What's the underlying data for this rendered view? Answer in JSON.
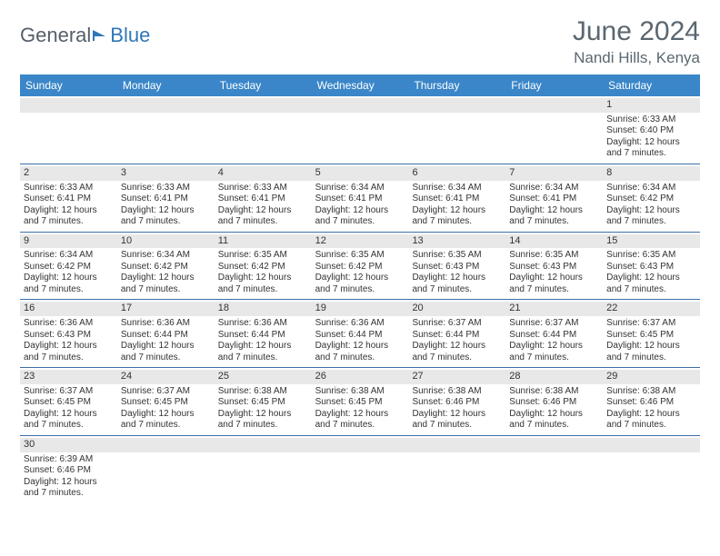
{
  "brand": {
    "part1": "General",
    "part2": "Blue"
  },
  "title": {
    "month": "June 2024",
    "location": "Nandi Hills, Kenya"
  },
  "style": {
    "header_bg": "#3a86c8",
    "header_text": "#ffffff",
    "daynum_bg": "#e8e8e8",
    "week_border": "#3a6fa5",
    "title_color": "#5b6770",
    "logo_gray": "#555f6a",
    "logo_blue": "#2f77b8",
    "body_bg": "#ffffff",
    "font": "Arial",
    "detail_fontsize": 10,
    "weekday_fontsize": 12,
    "month_fontsize": 30,
    "location_fontsize": 17
  },
  "weekdays": [
    "Sunday",
    "Monday",
    "Tuesday",
    "Wednesday",
    "Thursday",
    "Friday",
    "Saturday"
  ],
  "daylight_text": "Daylight: 12 hours and 7 minutes.",
  "weeks": [
    [
      {
        "n": "",
        "empty": true
      },
      {
        "n": "",
        "empty": true
      },
      {
        "n": "",
        "empty": true
      },
      {
        "n": "",
        "empty": true
      },
      {
        "n": "",
        "empty": true
      },
      {
        "n": "",
        "empty": true
      },
      {
        "n": "1",
        "sunrise": "6:33 AM",
        "sunset": "6:40 PM"
      }
    ],
    [
      {
        "n": "2",
        "sunrise": "6:33 AM",
        "sunset": "6:41 PM"
      },
      {
        "n": "3",
        "sunrise": "6:33 AM",
        "sunset": "6:41 PM"
      },
      {
        "n": "4",
        "sunrise": "6:33 AM",
        "sunset": "6:41 PM"
      },
      {
        "n": "5",
        "sunrise": "6:34 AM",
        "sunset": "6:41 PM"
      },
      {
        "n": "6",
        "sunrise": "6:34 AM",
        "sunset": "6:41 PM"
      },
      {
        "n": "7",
        "sunrise": "6:34 AM",
        "sunset": "6:41 PM"
      },
      {
        "n": "8",
        "sunrise": "6:34 AM",
        "sunset": "6:42 PM"
      }
    ],
    [
      {
        "n": "9",
        "sunrise": "6:34 AM",
        "sunset": "6:42 PM"
      },
      {
        "n": "10",
        "sunrise": "6:34 AM",
        "sunset": "6:42 PM"
      },
      {
        "n": "11",
        "sunrise": "6:35 AM",
        "sunset": "6:42 PM"
      },
      {
        "n": "12",
        "sunrise": "6:35 AM",
        "sunset": "6:42 PM"
      },
      {
        "n": "13",
        "sunrise": "6:35 AM",
        "sunset": "6:43 PM"
      },
      {
        "n": "14",
        "sunrise": "6:35 AM",
        "sunset": "6:43 PM"
      },
      {
        "n": "15",
        "sunrise": "6:35 AM",
        "sunset": "6:43 PM"
      }
    ],
    [
      {
        "n": "16",
        "sunrise": "6:36 AM",
        "sunset": "6:43 PM"
      },
      {
        "n": "17",
        "sunrise": "6:36 AM",
        "sunset": "6:44 PM"
      },
      {
        "n": "18",
        "sunrise": "6:36 AM",
        "sunset": "6:44 PM"
      },
      {
        "n": "19",
        "sunrise": "6:36 AM",
        "sunset": "6:44 PM"
      },
      {
        "n": "20",
        "sunrise": "6:37 AM",
        "sunset": "6:44 PM"
      },
      {
        "n": "21",
        "sunrise": "6:37 AM",
        "sunset": "6:44 PM"
      },
      {
        "n": "22",
        "sunrise": "6:37 AM",
        "sunset": "6:45 PM"
      }
    ],
    [
      {
        "n": "23",
        "sunrise": "6:37 AM",
        "sunset": "6:45 PM"
      },
      {
        "n": "24",
        "sunrise": "6:37 AM",
        "sunset": "6:45 PM"
      },
      {
        "n": "25",
        "sunrise": "6:38 AM",
        "sunset": "6:45 PM"
      },
      {
        "n": "26",
        "sunrise": "6:38 AM",
        "sunset": "6:45 PM"
      },
      {
        "n": "27",
        "sunrise": "6:38 AM",
        "sunset": "6:46 PM"
      },
      {
        "n": "28",
        "sunrise": "6:38 AM",
        "sunset": "6:46 PM"
      },
      {
        "n": "29",
        "sunrise": "6:38 AM",
        "sunset": "6:46 PM"
      }
    ],
    [
      {
        "n": "30",
        "sunrise": "6:39 AM",
        "sunset": "6:46 PM"
      },
      {
        "n": "",
        "empty": true
      },
      {
        "n": "",
        "empty": true
      },
      {
        "n": "",
        "empty": true
      },
      {
        "n": "",
        "empty": true
      },
      {
        "n": "",
        "empty": true
      },
      {
        "n": "",
        "empty": true
      }
    ]
  ]
}
